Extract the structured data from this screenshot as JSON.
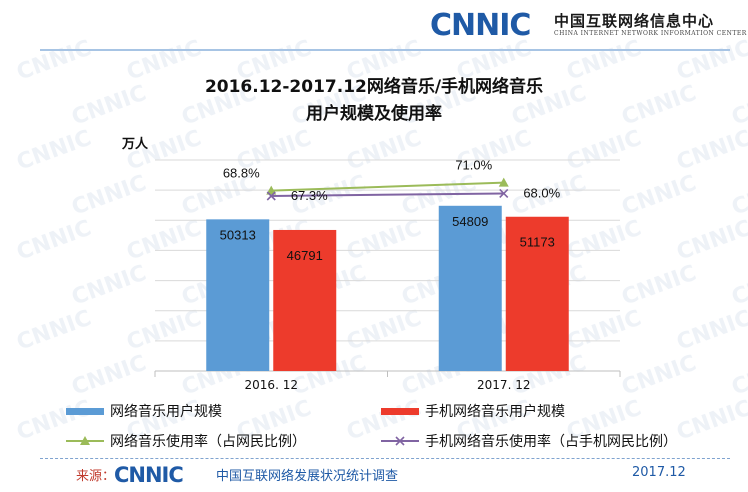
{
  "header": {
    "logo_text": "CNNIC",
    "org_name": "中国互联网络信息中心",
    "org_name_en": "CHINA INTERNET NETWORK INFORMATION CENTER"
  },
  "chart_title_line1": "2016.12-2017.12网络音乐/手机网络音乐",
  "chart_title_line2": "用户规模及使用率",
  "unit_label": "万人",
  "legend": {
    "s1": "网络音乐用户规模",
    "s2": "手机网络音乐用户规模",
    "s3": "网络音乐使用率（占网民比例）",
    "s4": "手机网络音乐使用率（占手机网民比例）"
  },
  "footer": {
    "source_label": "来源：",
    "source_logo_text": "CNNIC",
    "source_text": "中国互联网络发展状况统计调查",
    "date": "2017.12"
  },
  "colors": {
    "blue": "#5b9bd5",
    "red": "#ed3b2c",
    "green": "#9bbb59",
    "purple": "#8064a2",
    "logo_blue": "#1f5aa6"
  },
  "chart_data": {
    "type": "bar",
    "categories": [
      "2016. 12",
      "2017. 12"
    ],
    "series": [
      {
        "name": "网络音乐用户规模",
        "kind": "bar",
        "values": [
          50313,
          54809
        ],
        "labels": [
          "50313",
          "54809"
        ]
      },
      {
        "name": "手机网络音乐用户规模",
        "kind": "bar",
        "values": [
          46791,
          51173
        ],
        "labels": [
          "46791",
          "51173"
        ]
      },
      {
        "name": "网络音乐使用率（占网民比例）",
        "kind": "line",
        "values": [
          68.8,
          71.0
        ],
        "labels": [
          "68.8%",
          "71.0%"
        ]
      },
      {
        "name": "手机网络音乐使用率（占手机网民比例）",
        "kind": "line",
        "values": [
          67.3,
          68.0
        ],
        "labels": [
          "67.3%",
          "68.0%"
        ]
      }
    ],
    "ylabel": "万人",
    "ylim": [
      0,
      70000
    ],
    "y2lim": [
      0,
      100
    ],
    "grid": true,
    "legend_position": "bottom"
  }
}
